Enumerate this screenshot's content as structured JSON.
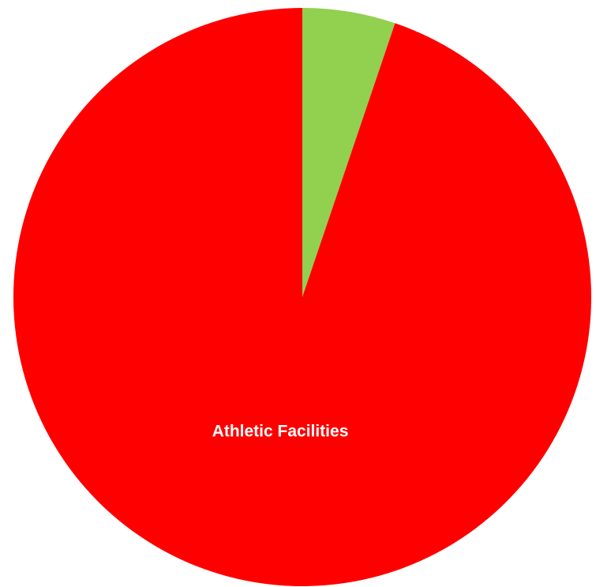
{
  "chart_data": {
    "type": "pie",
    "title": "",
    "slices": [
      {
        "label": "",
        "value": 5.2,
        "color": "#92D050"
      },
      {
        "label": "Athletic Facilities",
        "value": 94.8,
        "color": "#FF0000"
      }
    ],
    "start": "top",
    "direction": "clockwise"
  }
}
